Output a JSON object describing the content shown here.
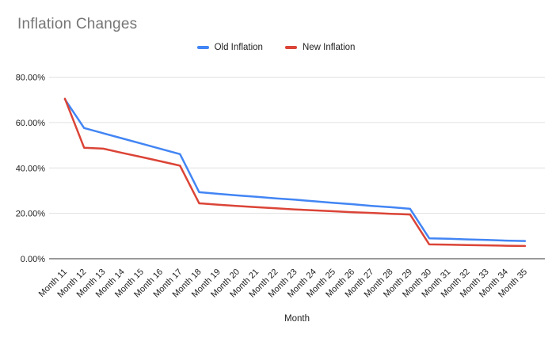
{
  "chart": {
    "background_color": "#ffffff",
    "title_color": "#757575",
    "axis_text_color": "#222222",
    "gridline_color": "#e0e0e0",
    "baseline_color": "#333333"
  },
  "chart_data": {
    "type": "line",
    "title": "Inflation Changes",
    "xlabel": "Month",
    "ylabel": "",
    "legend_position": "top-center",
    "grid": true,
    "categories": [
      "Month 11",
      "Month 12",
      "Month 13",
      "Month 14",
      "Month 15",
      "Month 16",
      "Month 17",
      "Month 18",
      "Month 19",
      "Month 20",
      "Month 21",
      "Month 22",
      "Month 23",
      "Month 24",
      "Month 25",
      "Month 26",
      "Month 27",
      "Month 28",
      "Month 29",
      "Month 30",
      "Month 31",
      "Month 32",
      "Month 33",
      "Month 34",
      "Month 35"
    ],
    "series": [
      {
        "name": "Old Inflation",
        "color": "#4285F4",
        "values": [
          70.2,
          57.6,
          55.3,
          53.0,
          50.7,
          48.4,
          46.1,
          29.3,
          28.6,
          27.9,
          27.3,
          26.6,
          26.0,
          25.3,
          24.6,
          24.0,
          23.3,
          22.7,
          22.0,
          9.0,
          8.8,
          8.5,
          8.3,
          8.0,
          7.8
        ]
      },
      {
        "name": "New Inflation",
        "color": "#DB4437",
        "values": [
          70.5,
          48.9,
          48.5,
          46.6,
          44.8,
          42.9,
          41.0,
          24.4,
          23.8,
          23.2,
          22.7,
          22.2,
          21.7,
          21.3,
          20.9,
          20.5,
          20.2,
          19.8,
          19.5,
          6.3,
          6.2,
          6.0,
          5.9,
          5.7,
          5.6
        ]
      }
    ],
    "y_axis": {
      "range": [
        0,
        80
      ],
      "ticks": [
        0,
        20,
        40,
        60,
        80
      ],
      "tick_labels": [
        "0.00%",
        "20.00%",
        "40.00%",
        "60.00%",
        "80.00%"
      ]
    }
  }
}
